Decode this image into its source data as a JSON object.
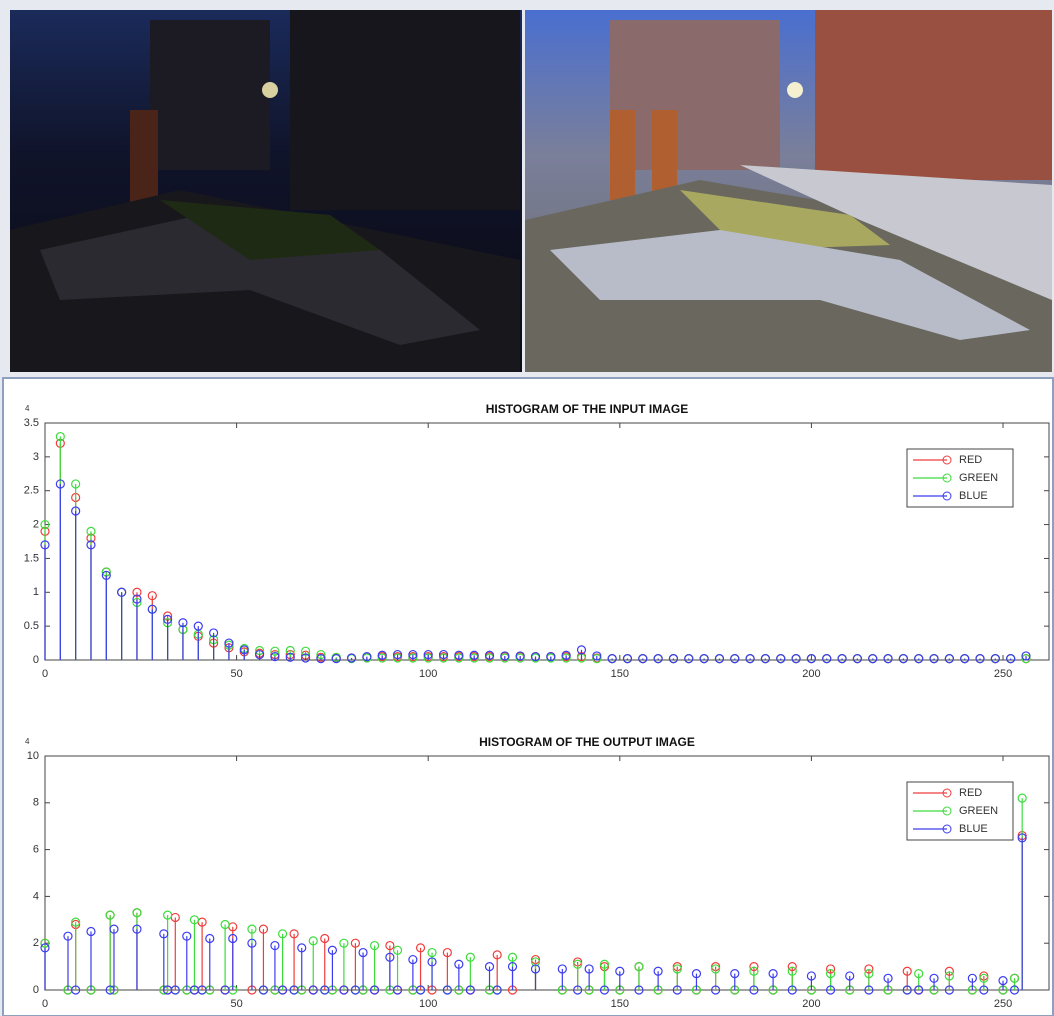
{
  "chart_data": [
    {
      "type": "stem",
      "title": "HISTOGRAM OF THE INPUT IMAGE",
      "y_multiplier": "× 10",
      "y_exponent": "4",
      "x": [
        0,
        4,
        8,
        12,
        16,
        20,
        24,
        28,
        32,
        36,
        40,
        44,
        48,
        52,
        56,
        60,
        64,
        68,
        72,
        76,
        80,
        84,
        88,
        92,
        96,
        100,
        104,
        108,
        112,
        116,
        120,
        124,
        128,
        132,
        136,
        140,
        144,
        148,
        152,
        156,
        160,
        164,
        168,
        172,
        176,
        180,
        184,
        188,
        192,
        196,
        200,
        204,
        208,
        212,
        216,
        220,
        224,
        228,
        232,
        236,
        240,
        244,
        248,
        252,
        256
      ],
      "series": [
        {
          "name": "RED",
          "color": "#f03c3c",
          "values": [
            1.9,
            3.2,
            2.4,
            1.8,
            1.3,
            1.0,
            1.0,
            0.95,
            0.65,
            0.45,
            0.35,
            0.25,
            0.18,
            0.12,
            0.1,
            0.08,
            0.08,
            0.07,
            0.04,
            0.03,
            0.03,
            0.04,
            0.05,
            0.05,
            0.05,
            0.05,
            0.05,
            0.05,
            0.05,
            0.05,
            0.05,
            0.05,
            0.05,
            0.05,
            0.05,
            0.05,
            0.03,
            0.02,
            0.02,
            0.02,
            0.02,
            0.02,
            0.02,
            0.02,
            0.02,
            0.02,
            0.02,
            0.02,
            0.02,
            0.02,
            0.02,
            0.02,
            0.02,
            0.02,
            0.02,
            0.02,
            0.02,
            0.02,
            0.02,
            0.02,
            0.02,
            0.02,
            0.02,
            0.02,
            0.02
          ]
        },
        {
          "name": "GREEN",
          "color": "#3cdc3c",
          "values": [
            2.0,
            3.3,
            2.6,
            1.9,
            1.3,
            1.0,
            0.85,
            0.75,
            0.55,
            0.45,
            0.38,
            0.3,
            0.22,
            0.17,
            0.14,
            0.13,
            0.14,
            0.13,
            0.08,
            0.04,
            0.02,
            0.03,
            0.03,
            0.03,
            0.03,
            0.03,
            0.03,
            0.03,
            0.03,
            0.03,
            0.03,
            0.03,
            0.03,
            0.03,
            0.03,
            0.03,
            0.02,
            0.02,
            0.02,
            0.02,
            0.02,
            0.02,
            0.02,
            0.02,
            0.02,
            0.02,
            0.02,
            0.02,
            0.02,
            0.02,
            0.02,
            0.02,
            0.02,
            0.02,
            0.02,
            0.02,
            0.02,
            0.02,
            0.02,
            0.02,
            0.02,
            0.02,
            0.02,
            0.02,
            0.02
          ]
        },
        {
          "name": "BLUE",
          "color": "#3c3cf0",
          "values": [
            1.7,
            2.6,
            2.2,
            1.7,
            1.25,
            1.0,
            0.9,
            0.75,
            0.6,
            0.55,
            0.5,
            0.4,
            0.25,
            0.15,
            0.08,
            0.05,
            0.04,
            0.03,
            0.02,
            0.02,
            0.03,
            0.05,
            0.07,
            0.08,
            0.08,
            0.08,
            0.08,
            0.07,
            0.07,
            0.07,
            0.06,
            0.06,
            0.05,
            0.05,
            0.07,
            0.15,
            0.06,
            0.02,
            0.02,
            0.02,
            0.02,
            0.02,
            0.02,
            0.02,
            0.02,
            0.02,
            0.02,
            0.02,
            0.02,
            0.02,
            0.02,
            0.02,
            0.02,
            0.02,
            0.02,
            0.02,
            0.02,
            0.02,
            0.02,
            0.02,
            0.02,
            0.02,
            0.02,
            0.02,
            0.06
          ]
        }
      ],
      "xlim": [
        0,
        262
      ],
      "xticks": [
        0,
        50,
        100,
        150,
        200,
        250
      ],
      "ylim": [
        0,
        3.5
      ],
      "yticks": [
        0,
        0.5,
        1,
        1.5,
        2,
        2.5,
        3,
        3.5
      ],
      "legend": "upper right"
    },
    {
      "type": "stem",
      "title": "HISTOGRAM OF THE OUTPUT IMAGE",
      "y_multiplier": "× 10",
      "y_exponent": "4",
      "x": [
        0,
        6,
        8,
        12,
        17,
        18,
        24,
        31,
        32,
        34,
        37,
        39,
        41,
        43,
        47,
        49,
        54,
        57,
        60,
        62,
        65,
        67,
        70,
        73,
        75,
        78,
        81,
        83,
        86,
        90,
        92,
        96,
        98,
        101,
        105,
        108,
        111,
        116,
        118,
        122,
        128,
        135,
        139,
        142,
        146,
        150,
        155,
        160,
        165,
        170,
        175,
        180,
        185,
        190,
        195,
        200,
        205,
        210,
        215,
        220,
        225,
        228,
        232,
        236,
        242,
        245,
        250,
        253,
        255
      ],
      "series": [
        {
          "name": "RED",
          "color": "#f03c3c",
          "values": [
            2.0,
            0,
            2.8,
            0,
            3.2,
            0,
            3.3,
            0,
            0,
            3.1,
            0,
            0,
            2.9,
            0,
            0,
            2.7,
            0,
            2.6,
            0,
            0,
            2.4,
            0,
            0,
            2.2,
            0,
            0,
            2.0,
            0,
            0,
            1.9,
            0,
            0,
            1.8,
            0,
            1.6,
            0,
            0,
            0,
            1.5,
            0,
            1.3,
            0,
            1.2,
            0,
            1.0,
            0,
            1.0,
            0,
            1.0,
            0,
            1.0,
            0,
            1.0,
            0,
            1.0,
            0,
            0.9,
            0,
            0.9,
            0,
            0.8,
            0,
            0,
            0.8,
            0,
            0.6,
            0,
            0.5,
            6.6
          ]
        },
        {
          "name": "GREEN",
          "color": "#3cdc3c",
          "values": [
            2.0,
            0,
            2.9,
            0,
            3.2,
            0,
            3.3,
            0,
            3.2,
            0,
            0,
            3.0,
            0,
            0,
            2.8,
            0,
            2.6,
            0,
            0,
            2.4,
            0,
            0,
            2.1,
            0,
            0,
            2.0,
            0,
            0,
            1.9,
            0,
            1.7,
            0,
            0,
            1.6,
            0,
            0,
            1.4,
            0,
            0,
            1.4,
            1.2,
            0,
            1.1,
            0,
            1.1,
            0,
            1.0,
            0,
            0.9,
            0,
            0.9,
            0,
            0.8,
            0,
            0.8,
            0,
            0.7,
            0,
            0.7,
            0,
            0,
            0.7,
            0,
            0.6,
            0,
            0.5,
            0,
            0.5,
            8.2
          ]
        },
        {
          "name": "BLUE",
          "color": "#3c3cf0",
          "values": [
            1.8,
            2.3,
            0,
            2.5,
            0,
            2.6,
            2.6,
            2.4,
            0,
            0,
            2.3,
            0,
            0,
            2.2,
            0,
            2.2,
            2.0,
            0,
            1.9,
            0,
            0,
            1.8,
            0,
            0,
            1.7,
            0,
            0,
            1.6,
            0,
            1.4,
            0,
            1.3,
            0,
            1.2,
            0,
            1.1,
            0,
            1.0,
            0,
            1.0,
            0.9,
            0.9,
            0,
            0.9,
            0,
            0.8,
            0,
            0.8,
            0,
            0.7,
            0,
            0.7,
            0,
            0.7,
            0,
            0.6,
            0,
            0.6,
            0,
            0.5,
            0,
            0,
            0.5,
            0,
            0.5,
            0,
            0.4,
            0,
            6.5
          ]
        }
      ],
      "xlim": [
        0,
        262
      ],
      "xticks": [
        0,
        50,
        100,
        150,
        200,
        250
      ],
      "ylim": [
        0,
        10
      ],
      "yticks": [
        0,
        2,
        4,
        6,
        8,
        10
      ],
      "legend": "upper right"
    }
  ]
}
